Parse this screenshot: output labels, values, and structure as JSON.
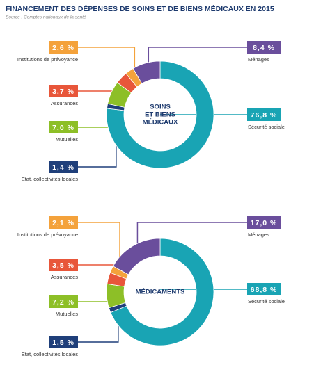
{
  "title": "FINANCEMENT DES DÉPENSES DE SOINS ET DE BIENS MÉDICAUX EN 2015",
  "source": "Source : Comptes nationaux de la santé",
  "chart_data": [
    {
      "type": "donut",
      "center_label": [
        "SOINS",
        "ET BIENS",
        "MÉDICAUX"
      ],
      "categories": [
        "Sécurité sociale",
        "Etat, collectivités locales",
        "Mutuelles",
        "Assurances",
        "Institutions de prévoyance",
        "Ménages"
      ],
      "values": [
        76.8,
        1.4,
        7.0,
        3.7,
        2.6,
        8.4
      ],
      "value_labels": [
        "76,8 %",
        "1,4 %",
        "7,0 %",
        "3,7 %",
        "2,6 %",
        "8,4 %"
      ],
      "colors": [
        "#19a4b4",
        "#1f3f7a",
        "#8dbf27",
        "#e8563a",
        "#f4a23b",
        "#6a4e9c"
      ]
    },
    {
      "type": "donut",
      "center_label": [
        "MÉDICAMENTS"
      ],
      "categories": [
        "Sécurité sociale",
        "Etat, collectivités locales",
        "Mutuelles",
        "Assurances",
        "Institutions de prévoyance",
        "Ménages"
      ],
      "values": [
        68.8,
        1.5,
        7.2,
        3.5,
        2.1,
        17.0
      ],
      "value_labels": [
        "68,8 %",
        "1,5 %",
        "7,2 %",
        "3,5 %",
        "2,1 %",
        "17,0 %"
      ],
      "colors": [
        "#19a4b4",
        "#1f3f7a",
        "#8dbf27",
        "#e8563a",
        "#f4a23b",
        "#6a4e9c"
      ]
    }
  ]
}
